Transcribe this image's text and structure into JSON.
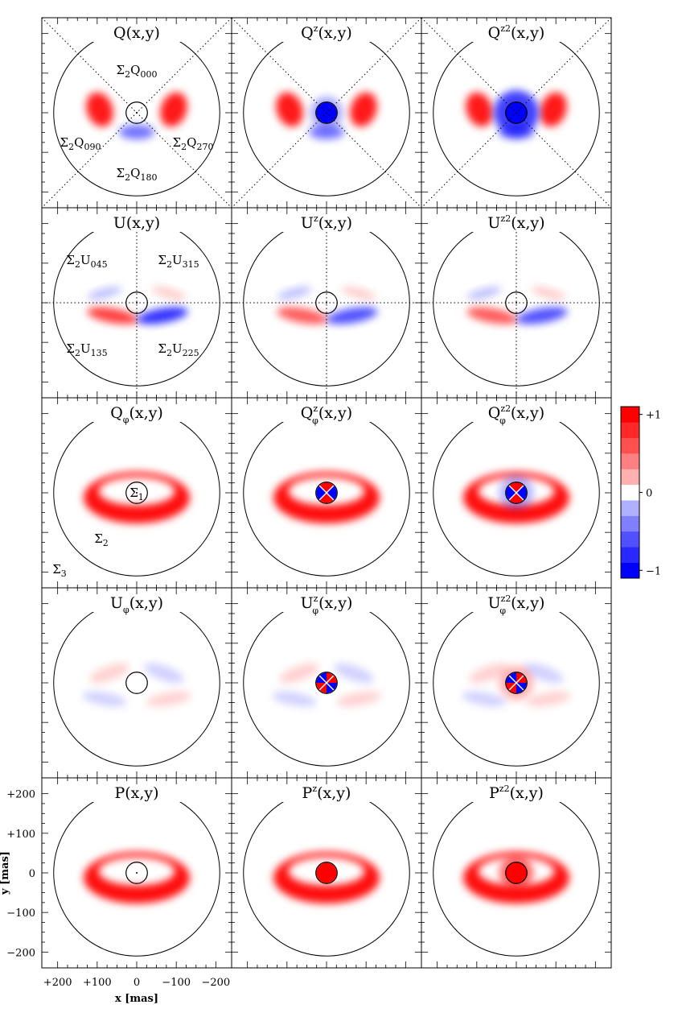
{
  "chart_data": {
    "type": "heatmap",
    "description_rows": [
      "Q",
      "U",
      "Q_phi",
      "U_phi",
      "P"
    ],
    "description_cols": [
      "",
      "z",
      "z2"
    ],
    "panels": [
      {
        "row": 0,
        "col": 0,
        "base": "Q",
        "sub": "",
        "sup": "",
        "args": "(x,y)",
        "pattern": "Q",
        "center": "none",
        "scale": 1.0
      },
      {
        "row": 0,
        "col": 1,
        "base": "Q",
        "sub": "",
        "sup": "z",
        "args": "(x,y)",
        "pattern": "Q",
        "center": "blue",
        "scale": 1.0
      },
      {
        "row": 0,
        "col": 2,
        "base": "Q",
        "sub": "",
        "sup": "z2",
        "args": "(x,y)",
        "pattern": "Q",
        "center": "blue-big",
        "scale": 1.0
      },
      {
        "row": 1,
        "col": 0,
        "base": "U",
        "sub": "",
        "sup": "",
        "args": "(x,y)",
        "pattern": "U",
        "center": "none",
        "scale": 1.0
      },
      {
        "row": 1,
        "col": 1,
        "base": "U",
        "sub": "",
        "sup": "z",
        "args": "(x,y)",
        "pattern": "U",
        "center": "none",
        "scale": 0.85
      },
      {
        "row": 1,
        "col": 2,
        "base": "U",
        "sub": "",
        "sup": "z2",
        "args": "(x,y)",
        "pattern": "U",
        "center": "none",
        "scale": 0.85
      },
      {
        "row": 2,
        "col": 0,
        "base": "Q",
        "sub": "φ",
        "sup": "",
        "args": "(x,y)",
        "pattern": "Qphi",
        "center": "none",
        "scale": 1.0
      },
      {
        "row": 2,
        "col": 1,
        "base": "Q",
        "sub": "φ",
        "sup": "z",
        "args": "(x,y)",
        "pattern": "Qphi",
        "center": "quad-q",
        "scale": 1.0
      },
      {
        "row": 2,
        "col": 2,
        "base": "Q",
        "sub": "φ",
        "sup": "z2",
        "args": "(x,y)",
        "pattern": "Qphi",
        "center": "quad-q-big",
        "scale": 1.0
      },
      {
        "row": 3,
        "col": 0,
        "base": "U",
        "sub": "φ",
        "sup": "",
        "args": "(x,y)",
        "pattern": "Uphi",
        "center": "none",
        "scale": 1.0
      },
      {
        "row": 3,
        "col": 1,
        "base": "U",
        "sub": "φ",
        "sup": "z",
        "args": "(x,y)",
        "pattern": "Uphi",
        "center": "quad-u",
        "scale": 1.0
      },
      {
        "row": 3,
        "col": 2,
        "base": "U",
        "sub": "φ",
        "sup": "z2",
        "args": "(x,y)",
        "pattern": "Uphi",
        "center": "quad-u-big",
        "scale": 1.0
      },
      {
        "row": 4,
        "col": 0,
        "base": "P",
        "sub": "",
        "sup": "",
        "args": "(x,y)",
        "pattern": "P",
        "center": "none",
        "scale": 1.0
      },
      {
        "row": 4,
        "col": 1,
        "base": "P",
        "sub": "",
        "sup": "z",
        "args": "(x,y)",
        "pattern": "P",
        "center": "red",
        "scale": 1.0
      },
      {
        "row": 4,
        "col": 2,
        "base": "P",
        "sub": "",
        "sup": "z2",
        "args": "(x,y)",
        "pattern": "P",
        "center": "red-big",
        "scale": 1.0
      }
    ],
    "annotations_Q": [
      {
        "text": "Σ",
        "sub": "2",
        "name": "Q",
        "index": "000",
        "pos": "top"
      },
      {
        "text": "Σ",
        "sub": "2",
        "name": "Q",
        "index": "090",
        "pos": "left"
      },
      {
        "text": "Σ",
        "sub": "2",
        "name": "Q",
        "index": "270",
        "pos": "right"
      },
      {
        "text": "Σ",
        "sub": "2",
        "name": "Q",
        "index": "180",
        "pos": "bottom"
      }
    ],
    "annotations_U": [
      {
        "text": "Σ",
        "sub": "2",
        "name": "U",
        "index": "045",
        "pos": "top-left"
      },
      {
        "text": "Σ",
        "sub": "2",
        "name": "U",
        "index": "315",
        "pos": "top-right"
      },
      {
        "text": "Σ",
        "sub": "2",
        "name": "U",
        "index": "135",
        "pos": "bottom-left"
      },
      {
        "text": "Σ",
        "sub": "2",
        "name": "U",
        "index": "225",
        "pos": "bottom-right"
      }
    ],
    "annotations_regions": [
      {
        "symbol": "Σ",
        "index": "1",
        "pos": "center"
      },
      {
        "symbol": "Σ",
        "index": "2",
        "pos": "middle-left"
      },
      {
        "symbol": "Σ",
        "index": "3",
        "pos": "bottom-left"
      }
    ],
    "xlabel": "x [mas]",
    "ylabel": "y [mas]",
    "x_ticks": [
      "+200",
      "+100",
      "0",
      "−100",
      "−200"
    ],
    "x_tick_values": [
      200,
      100,
      0,
      -100,
      -200
    ],
    "y_ticks": [
      "+200",
      "+100",
      "0",
      "−100",
      "−200"
    ],
    "y_tick_values": [
      200,
      100,
      0,
      -100,
      -200
    ],
    "xlim": [
      240,
      -240
    ],
    "ylim": [
      -240,
      240
    ],
    "outer_circle_radius_mas": 210,
    "inner_circle_radius_mas": 27,
    "colorbar": {
      "ticks": [
        "+1",
        "0",
        "−1"
      ],
      "tick_values": [
        1,
        0,
        -1
      ],
      "range": [
        -1,
        1
      ],
      "levels": 11,
      "colors": [
        "#0000ff",
        "#2828ff",
        "#5050ff",
        "#8080ff",
        "#b0b0ff",
        "#ffffff",
        "#ffb0b0",
        "#ff8080",
        "#ff5050",
        "#ff2828",
        "#ff0000"
      ]
    }
  }
}
